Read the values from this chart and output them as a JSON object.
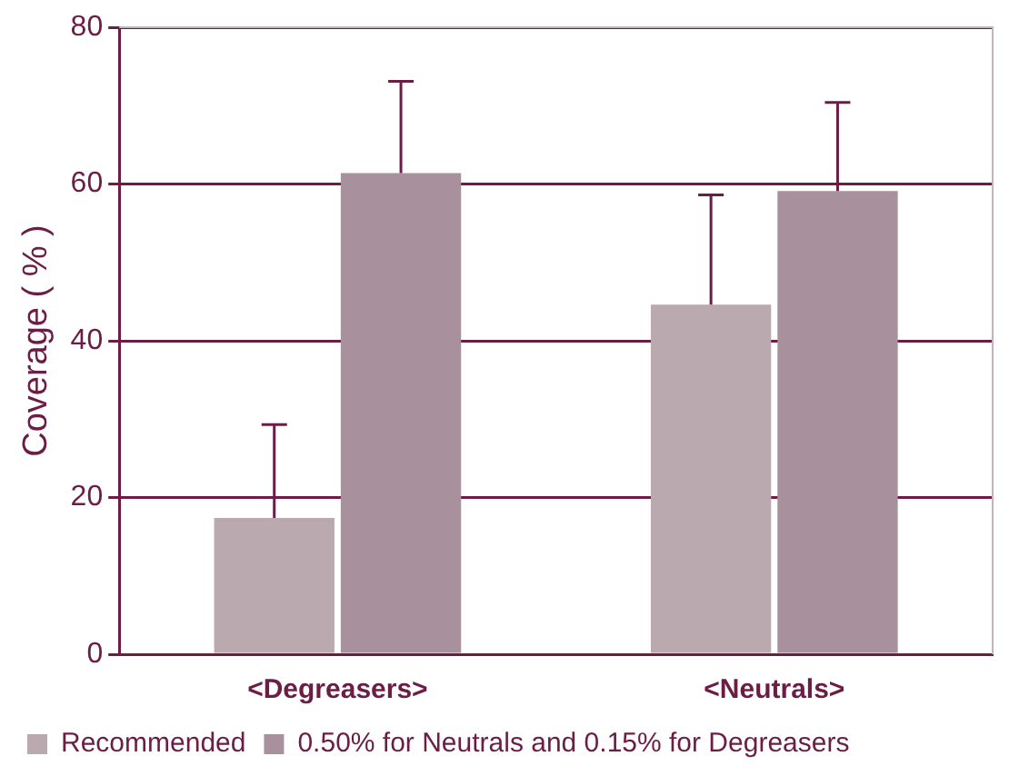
{
  "chart_data": {
    "type": "bar",
    "ylabel": "Coverage ( % )",
    "categories": [
      "<Degreasers>",
      "<Neutrals>"
    ],
    "series": [
      {
        "name": "Recommended",
        "color": "#bba9b0",
        "values": [
          17.4,
          44.6
        ],
        "errors": [
          [
            17.4,
            29.3
          ],
          [
            44.6,
            58.6
          ]
        ]
      },
      {
        "name": "0.50% for Neutrals and 0.15% for Degreasers",
        "color": "#a8909c",
        "values": [
          61.4,
          59.1
        ],
        "errors": [
          [
            61.4,
            73.1
          ],
          [
            59.1,
            70.4
          ]
        ]
      }
    ],
    "ylim": [
      0,
      80
    ],
    "yticks": [
      0,
      20,
      40,
      60,
      80
    ],
    "grid": "y",
    "legend": "bottom"
  }
}
